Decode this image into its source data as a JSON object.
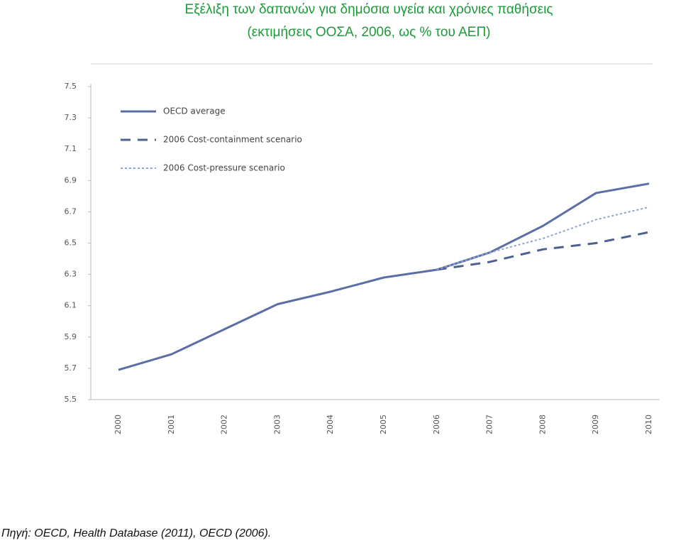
{
  "chart_data": {
    "type": "line",
    "title": "Εξέλιξη των δαπανών για δημόσια υγεία και χρόνιες παθήσεις",
    "subtitle": "(εκτιμήσεις ΟΟΣΑ, 2006, ως % του ΑΕΠ)",
    "source": "Πηγή: OECD, Health Database (2011), OECD (2006).",
    "categories": [
      "2000",
      "2001",
      "2002",
      "2003",
      "2004",
      "2005",
      "2006",
      "2007",
      "2008",
      "2009",
      "2010"
    ],
    "series": [
      {
        "name": "OECD average",
        "color": "#5b6fa6",
        "dash": "solid",
        "values": [
          5.69,
          5.79,
          5.95,
          6.11,
          6.19,
          6.28,
          6.33,
          6.44,
          6.61,
          6.82,
          6.88
        ]
      },
      {
        "name": "2006 Cost-containment scenario",
        "color": "#4d6190",
        "dash": "dashed",
        "values": [
          null,
          null,
          null,
          null,
          null,
          null,
          6.33,
          6.38,
          6.46,
          6.5,
          6.57
        ]
      },
      {
        "name": "2006 Cost-pressure scenario",
        "color": "#8ea3d4",
        "dash": "dotted",
        "values": [
          null,
          null,
          null,
          null,
          null,
          null,
          6.33,
          6.44,
          6.53,
          6.65,
          6.73
        ]
      }
    ],
    "ylim": [
      5.5,
      7.5
    ],
    "yticks": [
      5.5,
      5.7,
      5.9,
      6.1,
      6.3,
      6.5,
      6.7,
      6.9,
      7.1,
      7.3,
      7.5
    ],
    "legend": "upper-left",
    "grid": false
  }
}
